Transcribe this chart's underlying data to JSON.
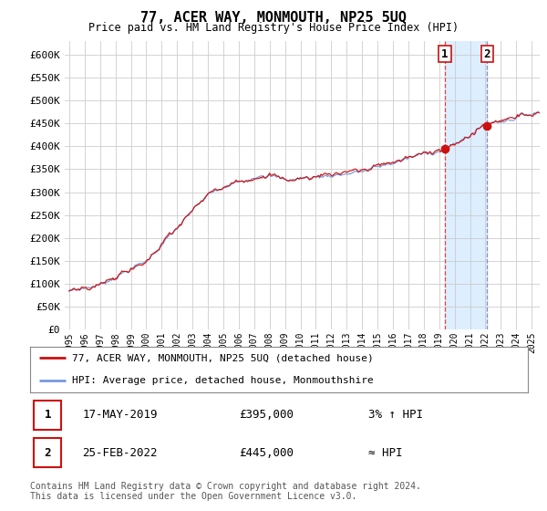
{
  "title": "77, ACER WAY, MONMOUTH, NP25 5UQ",
  "subtitle": "Price paid vs. HM Land Registry's House Price Index (HPI)",
  "ylabel_ticks": [
    "£0",
    "£50K",
    "£100K",
    "£150K",
    "£200K",
    "£250K",
    "£300K",
    "£350K",
    "£400K",
    "£450K",
    "£500K",
    "£550K",
    "£600K"
  ],
  "ytick_values": [
    0,
    50000,
    100000,
    150000,
    200000,
    250000,
    300000,
    350000,
    400000,
    450000,
    500000,
    550000,
    600000
  ],
  "ylim": [
    0,
    630000
  ],
  "xlim_start": 1994.7,
  "xlim_end": 2025.5,
  "sale1_x": 2019.37,
  "sale1_y": 395000,
  "sale2_x": 2022.12,
  "sale2_y": 445000,
  "sale1_vline_color": "#dd4444",
  "sale2_vline_color": "#8888cc",
  "hpi_line_color": "#7799dd",
  "price_line_color": "#cc1111",
  "shade_color": "#ddeeff",
  "legend_line1": "77, ACER WAY, MONMOUTH, NP25 5UQ (detached house)",
  "legend_line2": "HPI: Average price, detached house, Monmouthshire",
  "table_row1_num": "1",
  "table_row1_date": "17-MAY-2019",
  "table_row1_price": "£395,000",
  "table_row1_hpi": "3% ↑ HPI",
  "table_row2_num": "2",
  "table_row2_date": "25-FEB-2022",
  "table_row2_price": "£445,000",
  "table_row2_hpi": "≈ HPI",
  "footer": "Contains HM Land Registry data © Crown copyright and database right 2024.\nThis data is licensed under the Open Government Licence v3.0.",
  "background_color": "#ffffff",
  "grid_color": "#cccccc"
}
